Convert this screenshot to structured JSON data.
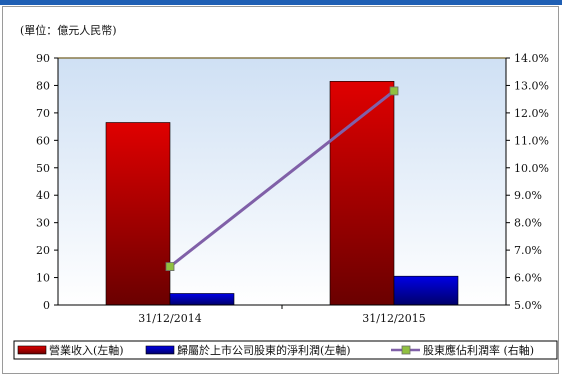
{
  "chart_data": {
    "type": "bar",
    "unit_label": "(單位：億元人民幣)",
    "categories": [
      "31/12/2014",
      "31/12/2015"
    ],
    "left_axis": {
      "min": 0,
      "max": 90,
      "step": 10,
      "ticks": [
        "0",
        "10",
        "20",
        "30",
        "40",
        "50",
        "60",
        "70",
        "80",
        "90"
      ]
    },
    "right_axis": {
      "min": 5.0,
      "max": 14.0,
      "step": 1.0,
      "ticks": [
        "5.0%",
        "6.0%",
        "7.0%",
        "8.0%",
        "9.0%",
        "10.0%",
        "11.0%",
        "12.0%",
        "13.0%",
        "14.0%"
      ]
    },
    "series": [
      {
        "name": "營業收入(左軸)",
        "type": "bar",
        "axis": "left",
        "values": [
          66.5,
          81.5
        ],
        "color": "#e00000",
        "color_dark": "#6a0000"
      },
      {
        "name": "歸屬於上市公司股東的淨利潤(左軸)",
        "type": "bar",
        "axis": "left",
        "values": [
          4.2,
          10.5
        ],
        "color": "#0000e6",
        "color_dark": "#00006a"
      },
      {
        "name": "股東應佔利潤率 (右軸)",
        "type": "line",
        "axis": "right",
        "values": [
          6.4,
          12.8
        ],
        "color": "#8060a8",
        "marker_color": "#90c040"
      }
    ],
    "grid": false,
    "legend_position": "bottom"
  }
}
